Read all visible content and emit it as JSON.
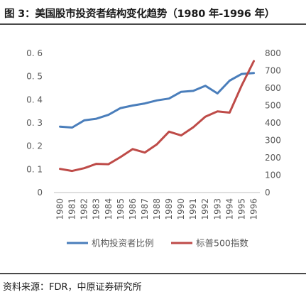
{
  "title": "图 3：美国股市投资者结构变化趋势（1980 年-1996 年）",
  "source": "资料来源：FDR，中原证券研究所",
  "chart_data": {
    "type": "line",
    "categories": [
      "1980",
      "1981",
      "1982",
      "1983",
      "1984",
      "1985",
      "1986",
      "1987",
      "1988",
      "1989",
      "1990",
      "1991",
      "1992",
      "1993",
      "1994",
      "1995",
      "1996"
    ],
    "series": [
      {
        "name": "机构投资者比例",
        "axis": "left",
        "color": "#4a7ebb",
        "values": [
          0.284,
          0.28,
          0.311,
          0.318,
          0.335,
          0.364,
          0.375,
          0.384,
          0.397,
          0.405,
          0.434,
          0.438,
          0.46,
          0.427,
          0.482,
          0.511,
          0.515
        ]
      },
      {
        "name": "标普500指数",
        "axis": "right",
        "color": "#be4b48",
        "values": [
          136,
          124,
          140,
          165,
          163,
          204,
          250,
          230,
          277,
          350,
          328,
          375,
          436,
          466,
          459,
          615,
          755
        ]
      }
    ],
    "y_left": {
      "min": 0,
      "max": 0.6,
      "ticks": [
        "0",
        "0.1",
        "0.2",
        "0.3",
        "0.4",
        "0.5",
        "0.6"
      ]
    },
    "y_right": {
      "min": 0,
      "max": 800,
      "ticks": [
        "0",
        "100",
        "200",
        "300",
        "400",
        "500",
        "600",
        "700",
        "800"
      ]
    },
    "grid": false,
    "legend_position": "bottom"
  }
}
